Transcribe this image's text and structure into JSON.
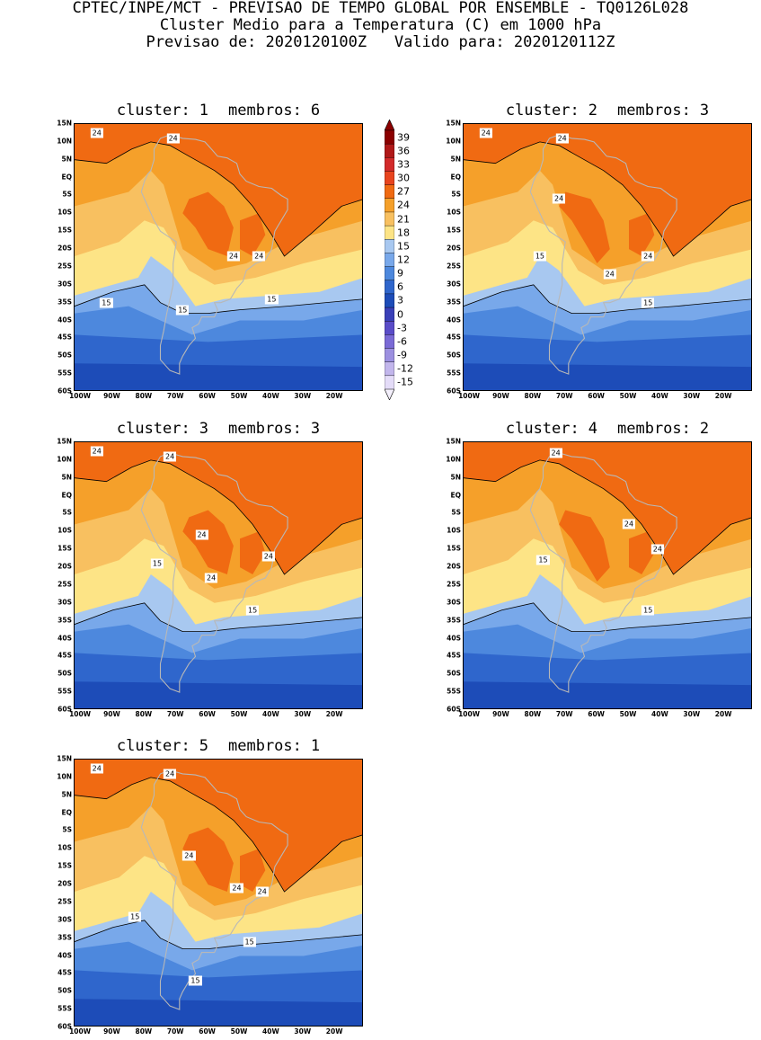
{
  "header": {
    "line1": "CPTEC/INPE/MCT - PREVISAO DE TEMPO GLOBAL POR ENSEMBLE - TQ0126L028",
    "line2": "Cluster Medio para a Temperatura (C) em 1000 hPa",
    "line3": "Previsao de: 2020120100Z   Valido para: 2020120112Z"
  },
  "lat_labels": [
    "15N",
    "10N",
    "5N",
    "EQ",
    "5S",
    "10S",
    "15S",
    "20S",
    "25S",
    "30S",
    "35S",
    "40S",
    "45S",
    "50S",
    "55S",
    "60S"
  ],
  "lon_labels": [
    "100W",
    "90W",
    "80W",
    "70W",
    "60W",
    "50W",
    "40W",
    "30W",
    "20W"
  ],
  "colorbar": {
    "labels": [
      "39",
      "36",
      "33",
      "30",
      "27",
      "24",
      "21",
      "18",
      "15",
      "12",
      "9",
      "6",
      "3",
      "0",
      "-3",
      "-6",
      "-9",
      "-12",
      "-15"
    ],
    "colors": [
      "#8b0000",
      "#b01818",
      "#d22a2a",
      "#e8441e",
      "#f06a12",
      "#f5a02a",
      "#f8c060",
      "#fde486",
      "#a8c8f0",
      "#78a8ea",
      "#4d88dd",
      "#2f66cc",
      "#1d4cb8",
      "#3a40b8",
      "#5a4cc8",
      "#7a6ad6",
      "#9c90e0",
      "#c2b6ec",
      "#e4dcf8"
    ]
  },
  "panels": [
    {
      "cluster_label": "cluster:",
      "cluster": "1",
      "members_label": "membros:",
      "members": "6",
      "contour_labels": [
        {
          "text": "24",
          "lon": -95,
          "lat": 12.5
        },
        {
          "text": "24",
          "lon": -71,
          "lat": 11
        },
        {
          "text": "24",
          "lon": -52,
          "lat": -22
        },
        {
          "text": "24",
          "lon": -44,
          "lat": -22
        },
        {
          "text": "15",
          "lon": -92,
          "lat": -35
        },
        {
          "text": "15",
          "lon": -68,
          "lat": -37
        },
        {
          "text": "15",
          "lon": -40,
          "lat": -34
        }
      ]
    },
    {
      "cluster_label": "cluster:",
      "cluster": "2",
      "members_label": "membros:",
      "members": "3",
      "contour_labels": [
        {
          "text": "24",
          "lon": -95,
          "lat": 12.5
        },
        {
          "text": "24",
          "lon": -71,
          "lat": 11
        },
        {
          "text": "24",
          "lon": -72,
          "lat": -6
        },
        {
          "text": "15",
          "lon": -78,
          "lat": -22
        },
        {
          "text": "24",
          "lon": -56,
          "lat": -27
        },
        {
          "text": "24",
          "lon": -44,
          "lat": -22
        },
        {
          "text": "15",
          "lon": -44,
          "lat": -35
        }
      ]
    },
    {
      "cluster_label": "cluster:",
      "cluster": "3",
      "members_label": "membros:",
      "members": "3",
      "contour_labels": [
        {
          "text": "24",
          "lon": -95,
          "lat": 12.5
        },
        {
          "text": "24",
          "lon": -72,
          "lat": 11
        },
        {
          "text": "24",
          "lon": -62,
          "lat": -11
        },
        {
          "text": "24",
          "lon": -41,
          "lat": -17
        },
        {
          "text": "15",
          "lon": -76,
          "lat": -19
        },
        {
          "text": "24",
          "lon": -59,
          "lat": -23
        },
        {
          "text": "15",
          "lon": -46,
          "lat": -32
        }
      ]
    },
    {
      "cluster_label": "cluster:",
      "cluster": "4",
      "members_label": "membros:",
      "members": "2",
      "contour_labels": [
        {
          "text": "24",
          "lon": -73,
          "lat": 12
        },
        {
          "text": "24",
          "lon": -50,
          "lat": -8
        },
        {
          "text": "24",
          "lon": -41,
          "lat": -15
        },
        {
          "text": "15",
          "lon": -77,
          "lat": -18
        },
        {
          "text": "15",
          "lon": -44,
          "lat": -32
        }
      ]
    },
    {
      "cluster_label": "cluster:",
      "cluster": "5",
      "members_label": "membros:",
      "members": "1",
      "contour_labels": [
        {
          "text": "24",
          "lon": -95,
          "lat": 12.5
        },
        {
          "text": "24",
          "lon": -72,
          "lat": 11
        },
        {
          "text": "24",
          "lon": -66,
          "lat": -12
        },
        {
          "text": "24",
          "lon": -51,
          "lat": -21
        },
        {
          "text": "24",
          "lon": -43,
          "lat": -22
        },
        {
          "text": "15",
          "lon": -83,
          "lat": -29
        },
        {
          "text": "15",
          "lon": -47,
          "lat": -36
        },
        {
          "text": "15",
          "lon": -64,
          "lat": -47
        }
      ]
    }
  ]
}
